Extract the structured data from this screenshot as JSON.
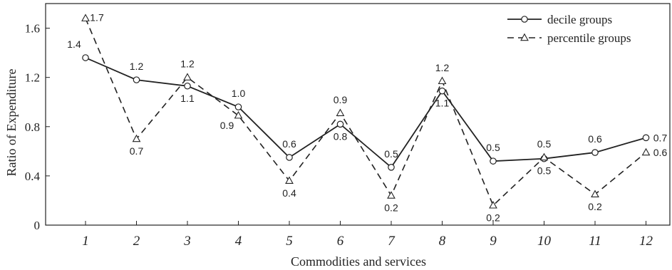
{
  "chart_data": {
    "type": "line",
    "title": "",
    "xlabel": "Commodities and services",
    "ylabel": "Ratio of Expenditure",
    "categories": [
      "1",
      "2",
      "3",
      "4",
      "5",
      "6",
      "7",
      "8",
      "9",
      "10",
      "11",
      "12"
    ],
    "ylim": [
      0,
      1.8
    ],
    "yticks": [
      0,
      0.4,
      0.8,
      1.2,
      1.6
    ],
    "ytick_labels": [
      "0",
      "0.4",
      "0.8",
      "1.2",
      "1.6"
    ],
    "grid": false,
    "legend_position": "top-right",
    "series": [
      {
        "name": "decile groups",
        "line_style": "solid",
        "marker": "circle",
        "values": [
          1.36,
          1.18,
          1.13,
          0.96,
          0.55,
          0.82,
          0.47,
          1.09,
          0.52,
          0.54,
          0.59,
          0.71
        ],
        "labels": [
          "1.4",
          "1.2",
          "1.1",
          "1.0",
          "0.6",
          "0.8",
          "0.5",
          "1.1",
          "0.5",
          "0.5",
          "0.6",
          "0.7"
        ]
      },
      {
        "name": "percentile groups",
        "line_style": "dashed",
        "marker": "triangle",
        "values": [
          1.68,
          0.7,
          1.2,
          0.89,
          0.36,
          0.91,
          0.24,
          1.17,
          0.16,
          0.55,
          0.25,
          0.59
        ],
        "labels": [
          "1.7",
          "0.7",
          "1.2",
          "0.9",
          "0.4",
          "0.9",
          "0.2",
          "1.2",
          "0.2",
          "0.5",
          "0.2",
          "0.6"
        ]
      }
    ]
  }
}
